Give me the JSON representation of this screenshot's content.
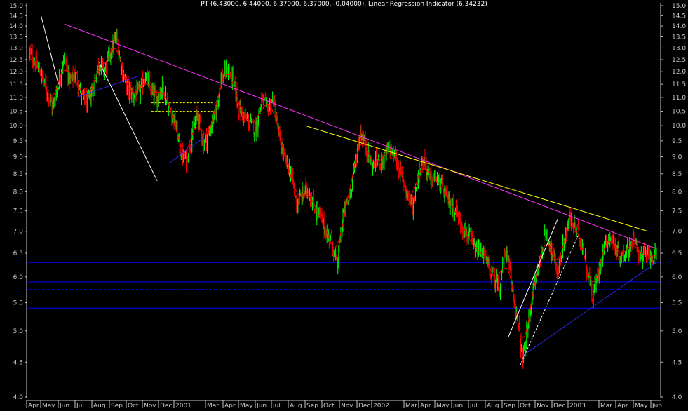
{
  "header": {
    "title": "PT (6.43000, 6.44000, 6.37000, 6.37000, -0.04000), Linear Regression Indicator (6.34232)"
  },
  "colors": {
    "background": "#000000",
    "axis": "#c8c8c8",
    "up_candle": "#00ff00",
    "down_candle": "#ff0000",
    "regression_line": "#ff0000",
    "trendline_magenta": "#ff33ff",
    "trendline_yellow": "#ffff00",
    "support_blue": "#0000ff",
    "channel_white": "#ffffff",
    "trendline_navy": "#2a2aff",
    "dashed_yellow": "#ffff00"
  },
  "chart_data": {
    "type": "candlestick",
    "xlabel": "",
    "ylabel": "",
    "ylim": [
      4.0,
      15.0
    ],
    "y_scale": "log",
    "y_ticks": [
      4.0,
      4.5,
      5.0,
      5.5,
      6.0,
      6.5,
      7.0,
      7.5,
      8.0,
      8.5,
      9.0,
      9.5,
      10.0,
      10.5,
      11.0,
      11.5,
      12.0,
      12.5,
      13.0,
      13.5,
      14.0,
      14.5,
      15.0
    ],
    "y_tick_labels": [
      "4.0",
      "4.5",
      "5.0",
      "5.5",
      "6.0",
      "6.5",
      "7.0",
      "7.5",
      "8.0",
      "8.5",
      "9.0",
      "9.5",
      "10.0",
      "10.5",
      "11.0",
      "11.5",
      "12.0",
      "12.5",
      "13.0",
      "13.5",
      "14.0",
      "14.5",
      "15.0"
    ],
    "x_labels": [
      "Apr",
      "May",
      "Jun",
      "Jul",
      "Aug",
      "Sep",
      "Oct",
      "Nov",
      "Dec",
      "2001",
      "Mar",
      "Apr",
      "May",
      "Jun",
      "Jul",
      "Aug",
      "Sep",
      "Oct",
      "Nov",
      "Dec",
      "2002",
      "Mar",
      "Apr",
      "May",
      "Jun",
      "Jul",
      "Aug",
      "Sep",
      "Oct",
      "Nov",
      "Dec",
      "2003",
      "Mar",
      "Apr",
      "May",
      "Jun"
    ],
    "close_path": [
      [
        0,
        12.8
      ],
      [
        4,
        11.9
      ],
      [
        8,
        10.6
      ],
      [
        12,
        12.6
      ],
      [
        14,
        11.6
      ],
      [
        16,
        11.9
      ],
      [
        18,
        11.0
      ],
      [
        20,
        10.8
      ],
      [
        22,
        11.4
      ],
      [
        24,
        12.4
      ],
      [
        26,
        12.0
      ],
      [
        28,
        12.9
      ],
      [
        30,
        13.5
      ],
      [
        31,
        12.6
      ],
      [
        32,
        12.0
      ],
      [
        34,
        11.3
      ],
      [
        36,
        11.1
      ],
      [
        38,
        11.2
      ],
      [
        40,
        11.9
      ],
      [
        42,
        11.2
      ],
      [
        44,
        11.0
      ],
      [
        46,
        11.5
      ],
      [
        48,
        10.6
      ],
      [
        50,
        10.2
      ],
      [
        52,
        9.2
      ],
      [
        54,
        8.9
      ],
      [
        56,
        9.7
      ],
      [
        58,
        10.4
      ],
      [
        60,
        9.4
      ],
      [
        62,
        9.8
      ],
      [
        64,
        10.4
      ],
      [
        66,
        11.7
      ],
      [
        68,
        12.1
      ],
      [
        70,
        11.8
      ],
      [
        72,
        10.6
      ],
      [
        74,
        10.3
      ],
      [
        76,
        10.1
      ],
      [
        78,
        9.9
      ],
      [
        80,
        10.9
      ],
      [
        82,
        10.6
      ],
      [
        84,
        10.9
      ],
      [
        86,
        9.6
      ],
      [
        88,
        8.9
      ],
      [
        90,
        8.6
      ],
      [
        92,
        7.7
      ],
      [
        94,
        7.9
      ],
      [
        96,
        8.1
      ],
      [
        98,
        7.6
      ],
      [
        100,
        7.4
      ],
      [
        102,
        7.0
      ],
      [
        104,
        6.8
      ],
      [
        106,
        6.2
      ],
      [
        108,
        7.4
      ],
      [
        110,
        7.8
      ],
      [
        112,
        8.7
      ],
      [
        114,
        9.8
      ],
      [
        116,
        9.3
      ],
      [
        118,
        8.7
      ],
      [
        120,
        8.9
      ],
      [
        122,
        8.9
      ],
      [
        124,
        9.3
      ],
      [
        126,
        9.0
      ],
      [
        128,
        8.5
      ],
      [
        130,
        8.0
      ],
      [
        132,
        7.6
      ],
      [
        134,
        8.6
      ],
      [
        136,
        8.9
      ],
      [
        138,
        8.3
      ],
      [
        140,
        8.4
      ],
      [
        142,
        8.1
      ],
      [
        144,
        7.8
      ],
      [
        146,
        7.6
      ],
      [
        148,
        7.3
      ],
      [
        150,
        7.0
      ],
      [
        152,
        6.8
      ],
      [
        154,
        6.5
      ],
      [
        156,
        6.6
      ],
      [
        158,
        6.2
      ],
      [
        160,
        6.0
      ],
      [
        162,
        5.8
      ],
      [
        164,
        6.6
      ],
      [
        166,
        5.9
      ],
      [
        168,
        5.2
      ],
      [
        170,
        4.5
      ],
      [
        172,
        5.2
      ],
      [
        174,
        5.9
      ],
      [
        176,
        6.4
      ],
      [
        178,
        7.0
      ],
      [
        180,
        6.5
      ],
      [
        182,
        6.1
      ],
      [
        184,
        6.7
      ],
      [
        186,
        7.3
      ],
      [
        188,
        7.1
      ],
      [
        190,
        6.8
      ],
      [
        192,
        6.2
      ],
      [
        194,
        5.6
      ],
      [
        196,
        6.1
      ],
      [
        198,
        6.7
      ],
      [
        200,
        6.9
      ],
      [
        202,
        6.6
      ],
      [
        204,
        6.4
      ],
      [
        206,
        6.6
      ],
      [
        208,
        6.8
      ],
      [
        210,
        6.5
      ],
      [
        212,
        6.4
      ],
      [
        214,
        6.5
      ],
      [
        216,
        6.37
      ]
    ],
    "series": [
      {
        "name": "PT",
        "kind": "price"
      },
      {
        "name": "Linear Regression Indicator",
        "kind": "line",
        "last_value": 6.34232
      }
    ],
    "trendlines": [
      {
        "color": "magenta",
        "from": [
          12,
          14.1
        ],
        "to": [
          216,
          6.6
        ]
      },
      {
        "color": "yellow",
        "from": [
          95,
          10.0
        ],
        "to": [
          213,
          7.0
        ]
      },
      {
        "color": "blue",
        "from": [
          16,
          11.0
        ],
        "to": [
          37,
          11.8
        ]
      },
      {
        "color": "blue",
        "from": [
          48,
          8.8
        ],
        "to": [
          60,
          9.6
        ]
      },
      {
        "color": "blue",
        "from": [
          170,
          4.6
        ],
        "to": [
          216,
          6.3
        ]
      },
      {
        "color": "white",
        "from": [
          24,
          12.4
        ],
        "to": [
          44,
          8.3
        ]
      },
      {
        "color": "white",
        "from": [
          165,
          4.9
        ],
        "to": [
          182,
          7.3
        ]
      },
      {
        "color": "white",
        "from": [
          169,
          4.45
        ],
        "to": [
          189,
          6.9
        ],
        "dashed": true
      },
      {
        "color": "white",
        "from": [
          4,
          14.5
        ],
        "to": [
          10,
          11.5
        ]
      }
    ],
    "horizontal_lines": [
      {
        "color": "blue",
        "y": 6.3
      },
      {
        "color": "blue",
        "y": 5.9
      },
      {
        "color": "blue",
        "y": 5.75,
        "dashed": true
      },
      {
        "color": "blue",
        "y": 5.4
      },
      {
        "color": "yellow",
        "y": 10.8,
        "from": 42,
        "to": 63,
        "dashed": true
      },
      {
        "color": "yellow",
        "y": 10.5,
        "from": 42,
        "to": 63,
        "dashed": true
      }
    ],
    "grid": false,
    "legend": "none"
  }
}
